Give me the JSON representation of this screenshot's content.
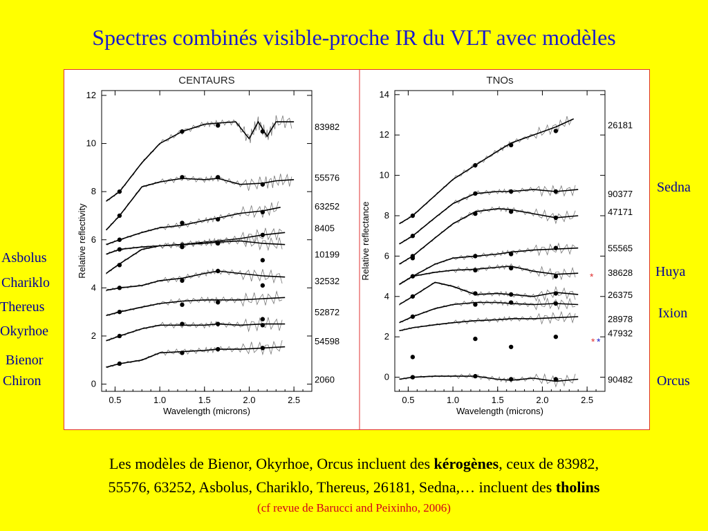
{
  "title": "Spectres combinés visible-proche IR du VLT avec modèles",
  "left_labels": [
    "Asbolus",
    "Chariklo",
    "Thereus",
    "Okyrhoe",
    "Bienor",
    "Chiron"
  ],
  "right_labels": [
    "Sedna",
    "Huya",
    "Ixion",
    "Orcus"
  ],
  "caption": {
    "line1_a": "Les modèles de Bienor, Okyrhoe, Orcus  incluent des ",
    "line1_b": "kérogènes",
    "line1_c": ",  ceux de 83982,",
    "line2_a": "55576, 63252, Asbolus, Chariklo, Thereus, 26181,  Sedna,… incluent des ",
    "line2_b": "tholins"
  },
  "reference": "(cf revue de Barucci and Peixinho, 2006)",
  "colors": {
    "background": "#ffff00",
    "title": "#1a1acc",
    "labels": "#000099",
    "frame": "#e03030",
    "reference": "#d0001a"
  },
  "chart_data": [
    {
      "type": "line",
      "title": "CENTAURS",
      "xlabel": "Wavelength (microns)",
      "ylabel": "Relative reflectivity",
      "xlim": [
        0.35,
        2.7
      ],
      "ylim": [
        -0.3,
        12.2
      ],
      "xticks": [
        0.5,
        1.0,
        1.5,
        2.0,
        2.5
      ],
      "xtick_labels": [
        "0.5",
        "1.0",
        "1.5",
        "2.0",
        "2.5"
      ],
      "yticks": [
        0,
        2,
        4,
        6,
        8,
        10,
        12
      ],
      "ytick_labels": [
        "0",
        "2",
        "4",
        "6",
        "8",
        "10",
        "12"
      ],
      "series": [
        {
          "name": "83982",
          "label_y": 10.7,
          "x": [
            0.4,
            0.55,
            0.8,
            1.0,
            1.25,
            1.5,
            1.65,
            1.85,
            2.0,
            2.1,
            2.2,
            2.3,
            2.5
          ],
          "y": [
            7.6,
            8.0,
            9.2,
            10.0,
            10.5,
            10.8,
            10.85,
            10.9,
            10.2,
            10.9,
            10.3,
            10.9,
            10.9
          ],
          "points_x": [
            0.55,
            1.25,
            1.65,
            2.15
          ],
          "points_y": [
            8.0,
            10.5,
            10.75,
            10.5
          ]
        },
        {
          "name": "55576",
          "label_y": 8.6,
          "x": [
            0.4,
            0.55,
            0.8,
            1.0,
            1.25,
            1.5,
            1.65,
            1.9,
            2.15,
            2.3,
            2.5
          ],
          "y": [
            6.4,
            7.0,
            8.2,
            8.4,
            8.55,
            8.5,
            8.55,
            8.3,
            8.35,
            8.45,
            8.5
          ],
          "points_x": [
            0.55,
            1.25,
            1.65,
            2.15
          ],
          "points_y": [
            7.0,
            8.6,
            8.6,
            8.3
          ]
        },
        {
          "name": "63252",
          "label_y": 7.4,
          "x": [
            0.4,
            0.55,
            0.8,
            1.0,
            1.25,
            1.5,
            1.65,
            1.9,
            2.15,
            2.35
          ],
          "y": [
            5.8,
            6.0,
            6.3,
            6.5,
            6.6,
            6.8,
            6.9,
            7.1,
            7.2,
            7.35
          ],
          "points_x": [
            0.55,
            1.25,
            1.65,
            2.15
          ],
          "points_y": [
            6.0,
            6.7,
            6.85,
            7.15
          ]
        },
        {
          "name": "8405",
          "label_y": 6.5,
          "x": [
            0.4,
            0.55,
            0.8,
            1.0,
            1.25,
            1.5,
            1.65,
            1.9,
            2.15,
            2.4
          ],
          "y": [
            5.4,
            5.6,
            5.7,
            5.75,
            5.8,
            5.9,
            5.95,
            6.05,
            6.2,
            6.3
          ],
          "points_x": [
            0.55,
            1.25,
            1.65,
            2.15
          ],
          "points_y": [
            5.6,
            5.8,
            5.9,
            6.2
          ]
        },
        {
          "name": "10199",
          "label_y": 5.4,
          "x": [
            0.4,
            0.55,
            0.8,
            1.0,
            1.25,
            1.5,
            1.65,
            1.9,
            2.15,
            2.4
          ],
          "y": [
            4.6,
            5.0,
            5.6,
            5.75,
            5.8,
            5.85,
            5.9,
            5.95,
            5.85,
            5.8
          ],
          "points_x": [
            0.55,
            1.25,
            1.65,
            2.15
          ],
          "points_y": [
            4.95,
            5.7,
            5.85,
            5.15
          ]
        },
        {
          "name": "32532",
          "label_y": 4.3,
          "x": [
            0.4,
            0.55,
            0.8,
            1.0,
            1.25,
            1.5,
            1.65,
            1.9,
            2.15,
            2.4
          ],
          "y": [
            3.9,
            4.0,
            4.1,
            4.3,
            4.4,
            4.6,
            4.7,
            4.6,
            4.5,
            4.45
          ],
          "points_x": [
            0.55,
            1.25,
            1.65,
            2.15
          ],
          "points_y": [
            4.0,
            4.3,
            4.7,
            4.1
          ]
        },
        {
          "name": "52872",
          "label_y": 3.0,
          "x": [
            0.4,
            0.55,
            0.8,
            1.0,
            1.25,
            1.5,
            1.65,
            1.9,
            2.15,
            2.4
          ],
          "y": [
            2.85,
            3.0,
            3.2,
            3.35,
            3.45,
            3.5,
            3.5,
            3.5,
            3.55,
            3.6
          ],
          "points_x": [
            0.55,
            1.25,
            1.65,
            2.15
          ],
          "points_y": [
            3.0,
            3.3,
            3.4,
            2.7
          ]
        },
        {
          "name": "54598",
          "label_y": 1.8,
          "x": [
            0.4,
            0.55,
            0.8,
            1.0,
            1.25,
            1.5,
            1.65,
            1.9,
            2.15,
            2.4
          ],
          "y": [
            1.8,
            2.0,
            2.3,
            2.45,
            2.45,
            2.45,
            2.5,
            2.45,
            2.5,
            2.5
          ],
          "points_x": [
            0.55,
            1.25,
            1.65,
            2.15
          ],
          "points_y": [
            2.0,
            2.5,
            2.5,
            2.45
          ]
        },
        {
          "name": "2060",
          "label_y": 0.2,
          "x": [
            0.4,
            0.55,
            0.8,
            1.0,
            1.25,
            1.5,
            1.65,
            1.9,
            2.15,
            2.4
          ],
          "y": [
            0.7,
            0.85,
            1.0,
            1.3,
            1.35,
            1.4,
            1.45,
            1.45,
            1.5,
            1.55
          ],
          "points_x": [
            0.55,
            1.25,
            1.65,
            2.15
          ],
          "points_y": [
            0.85,
            1.3,
            1.45,
            1.5
          ]
        }
      ]
    },
    {
      "type": "line",
      "title": "TNOs",
      "xlabel": "Wavelength (microns)",
      "ylabel": "Relative reflectance",
      "xlim": [
        0.35,
        2.7
      ],
      "ylim": [
        -0.7,
        14.2
      ],
      "xticks": [
        0.5,
        1.0,
        1.5,
        2.0,
        2.5
      ],
      "xtick_labels": [
        "0.5",
        "1.0",
        "1.5",
        "2.0",
        "2.5"
      ],
      "yticks": [
        0,
        2,
        4,
        6,
        8,
        10,
        12,
        14
      ],
      "ytick_labels": [
        "0",
        "2",
        "4",
        "6",
        "8",
        "10",
        "12",
        "14"
      ],
      "series": [
        {
          "name": "26181",
          "label_y": 12.5,
          "x": [
            0.4,
            0.55,
            0.8,
            1.0,
            1.25,
            1.5,
            1.65,
            1.9,
            2.15,
            2.35
          ],
          "y": [
            7.6,
            8.0,
            9.0,
            9.8,
            10.5,
            11.2,
            11.6,
            12.0,
            12.4,
            12.8
          ],
          "points_x": [
            0.55,
            1.25,
            1.65,
            2.15
          ],
          "points_y": [
            8.0,
            10.5,
            11.5,
            12.2
          ]
        },
        {
          "name": "90377",
          "label_y": 9.1,
          "x": [
            0.4,
            0.55,
            0.8,
            1.0,
            1.25,
            1.5,
            1.65,
            1.9,
            2.15,
            2.4
          ],
          "y": [
            6.6,
            7.0,
            7.9,
            8.6,
            9.1,
            9.2,
            9.2,
            9.3,
            9.2,
            9.3
          ],
          "points_x": [
            0.55,
            1.25,
            1.65,
            2.15
          ],
          "points_y": [
            7.0,
            9.1,
            9.2,
            9.2
          ]
        },
        {
          "name": "47171",
          "label_y": 8.2,
          "x": [
            0.4,
            0.55,
            0.8,
            1.0,
            1.25,
            1.5,
            1.65,
            1.9,
            2.15,
            2.4
          ],
          "y": [
            5.6,
            6.0,
            6.9,
            7.6,
            8.2,
            8.35,
            8.3,
            8.1,
            7.9,
            8.0
          ],
          "points_x": [
            0.55,
            1.25,
            1.65,
            2.15
          ],
          "points_y": [
            6.0,
            8.1,
            8.2,
            7.9
          ]
        },
        {
          "name": "55565",
          "label_y": 6.4,
          "x": [
            0.4,
            0.55,
            0.8,
            1.0,
            1.25,
            1.5,
            1.65,
            1.9,
            2.15,
            2.4
          ],
          "y": [
            4.6,
            5.0,
            5.6,
            5.9,
            6.0,
            6.1,
            6.2,
            6.3,
            6.35,
            6.4
          ],
          "points_x": [
            0.55,
            1.25,
            1.65,
            2.15
          ],
          "points_y": [
            5.9,
            6.0,
            6.1,
            6.4
          ]
        },
        {
          "name": "38628",
          "label_y": 5.2,
          "x": [
            0.4,
            0.55,
            0.8,
            1.0,
            1.25,
            1.5,
            1.65,
            1.9,
            2.15,
            2.4
          ],
          "y": [
            4.6,
            5.0,
            5.2,
            5.3,
            5.35,
            5.45,
            5.5,
            5.25,
            5.1,
            5.15
          ],
          "points_x": [
            0.55,
            1.25,
            1.65,
            2.15
          ],
          "points_y": [
            5.0,
            5.3,
            5.4,
            5.0
          ]
        },
        {
          "name": "26375",
          "label_y": 4.1,
          "x": [
            0.4,
            0.55,
            0.8,
            1.0,
            1.25,
            1.5,
            1.65,
            1.9,
            2.15,
            2.4
          ],
          "y": [
            3.6,
            4.0,
            4.7,
            4.5,
            4.1,
            4.15,
            4.1,
            4.0,
            4.2,
            4.1
          ],
          "points_x": [
            0.55,
            1.25,
            1.65,
            2.15
          ],
          "points_y": [
            4.0,
            4.15,
            4.1,
            4.15
          ]
        },
        {
          "name": "28978",
          "label_y": 2.9,
          "x": [
            0.4,
            0.55,
            0.8,
            1.0,
            1.25,
            1.5,
            1.65,
            1.9,
            2.15,
            2.4
          ],
          "y": [
            2.7,
            3.0,
            3.4,
            3.6,
            3.7,
            3.7,
            3.65,
            3.6,
            3.65,
            3.6
          ],
          "points_x": [
            0.55,
            1.25,
            1.65,
            2.15
          ],
          "points_y": [
            3.0,
            3.6,
            3.7,
            3.65
          ]
        },
        {
          "name": "47932",
          "label_y": 2.2,
          "x": [
            0.4,
            0.55,
            0.8,
            1.0,
            1.25,
            1.5,
            1.65,
            1.9,
            2.15,
            2.4
          ],
          "y": [
            2.3,
            2.45,
            2.6,
            2.7,
            2.8,
            2.85,
            2.9,
            2.9,
            2.95,
            3.0
          ],
          "points_x": [
            0.55,
            1.25,
            1.65,
            2.15
          ],
          "points_y": [
            1.0,
            1.9,
            1.5,
            2.0
          ]
        },
        {
          "name": "90482",
          "label_y": -0.1,
          "x": [
            0.4,
            0.55,
            0.8,
            1.0,
            1.25,
            1.5,
            1.65,
            1.9,
            2.15,
            2.4
          ],
          "y": [
            -0.1,
            0.0,
            0.05,
            0.05,
            0.05,
            -0.1,
            -0.15,
            -0.05,
            -0.2,
            -0.1
          ],
          "points_x": [
            0.55,
            1.25,
            1.65,
            2.15
          ],
          "points_y": [
            0.0,
            0.05,
            -0.1,
            -0.1
          ]
        }
      ]
    }
  ]
}
